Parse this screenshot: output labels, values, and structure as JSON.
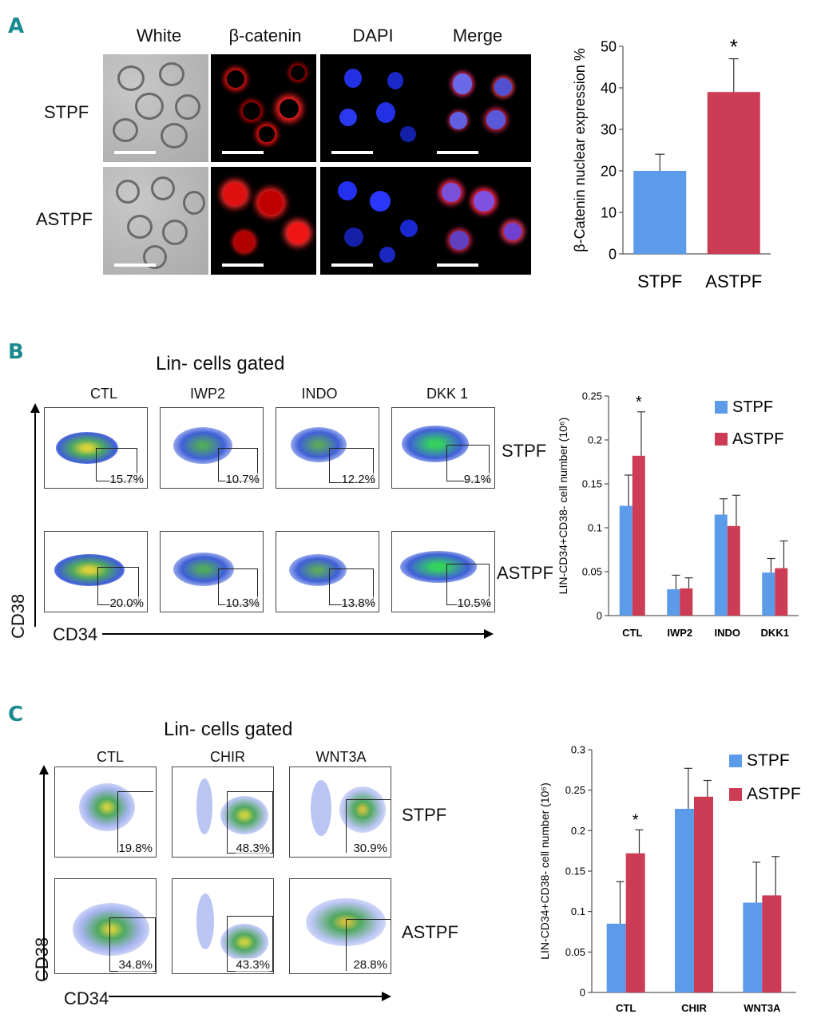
{
  "panel_a": {
    "letter": "A",
    "headers": [
      "White",
      "β-catenin",
      "DAPI",
      "Merge"
    ],
    "rows": [
      "STPF",
      "ASTPF"
    ]
  },
  "panel_b": {
    "letter": "B",
    "gate_title": "Lin- cells gated",
    "conditions": [
      "CTL",
      "IWP2",
      "INDO",
      "DKK 1"
    ],
    "rows": [
      "STPF",
      "ASTPF"
    ],
    "percentages": [
      [
        "15.7%",
        "10.7%",
        "12.2%",
        "9.1%"
      ],
      [
        "20.0%",
        "10.3%",
        "13.8%",
        "10.5%"
      ]
    ],
    "y_axis": "CD38",
    "x_axis": "CD34"
  },
  "panel_c": {
    "letter": "C",
    "gate_title": "Lin- cells gated",
    "conditions": [
      "CTL",
      "CHIR",
      "WNT3A"
    ],
    "rows": [
      "STPF",
      "ASTPF"
    ],
    "percentages": [
      [
        "19.8%",
        "48.3%",
        "30.9%"
      ],
      [
        "34.8%",
        "43.3%",
        "28.8%"
      ]
    ],
    "y_axis": "CD38",
    "x_axis": "CD34"
  },
  "colors": {
    "stpf": "#5b9bea",
    "astpf": "#cc3d55",
    "teal": "#1a8a8f"
  },
  "chart_data": [
    {
      "type": "bar",
      "id": "A",
      "categories": [
        "STPF",
        "ASTPF"
      ],
      "values": [
        20,
        39
      ],
      "errors": [
        4,
        8
      ],
      "significance": [
        "",
        "*"
      ],
      "ylabel": "β-Catenin nuclear expression %",
      "ylim": [
        0,
        50
      ],
      "yticks": [
        0,
        10,
        20,
        30,
        40,
        50
      ]
    },
    {
      "type": "bar",
      "id": "B",
      "categories": [
        "CTL",
        "IWP2",
        "INDO",
        "DKK1"
      ],
      "series": [
        {
          "name": "STPF",
          "values": [
            0.125,
            0.03,
            0.115,
            0.049
          ],
          "errors": [
            0.035,
            0.016,
            0.018,
            0.016
          ]
        },
        {
          "name": "ASTPF",
          "values": [
            0.182,
            0.031,
            0.102,
            0.054
          ],
          "errors": [
            0.05,
            0.012,
            0.035,
            0.031
          ]
        }
      ],
      "significance": [
        "*",
        "",
        "",
        ""
      ],
      "ylabel": "LIN-CD34+CD38- cell number (10⁶)",
      "ylim": [
        0,
        0.25
      ],
      "yticks": [
        "0",
        "0.05",
        "0.1",
        "0.15",
        "0.2",
        "0.25"
      ],
      "legend": [
        "STPF",
        "ASTPF"
      ]
    },
    {
      "type": "bar",
      "id": "C",
      "categories": [
        "CTL",
        "CHIR",
        "WNT3A"
      ],
      "series": [
        {
          "name": "STPF",
          "values": [
            0.085,
            0.227,
            0.111
          ],
          "errors": [
            0.052,
            0.05,
            0.05
          ]
        },
        {
          "name": "ASTPF",
          "values": [
            0.172,
            0.242,
            0.12
          ],
          "errors": [
            0.029,
            0.02,
            0.048
          ]
        }
      ],
      "significance": [
        "*",
        "",
        ""
      ],
      "ylabel": "LIN-CD34+CD38- cell number (10⁶)",
      "ylim": [
        0,
        0.3
      ],
      "yticks": [
        "0",
        "0.05",
        "0.1",
        "0.15",
        "0.2",
        "0.25",
        "0.3"
      ],
      "legend": [
        "STPF",
        "ASTPF"
      ]
    }
  ]
}
